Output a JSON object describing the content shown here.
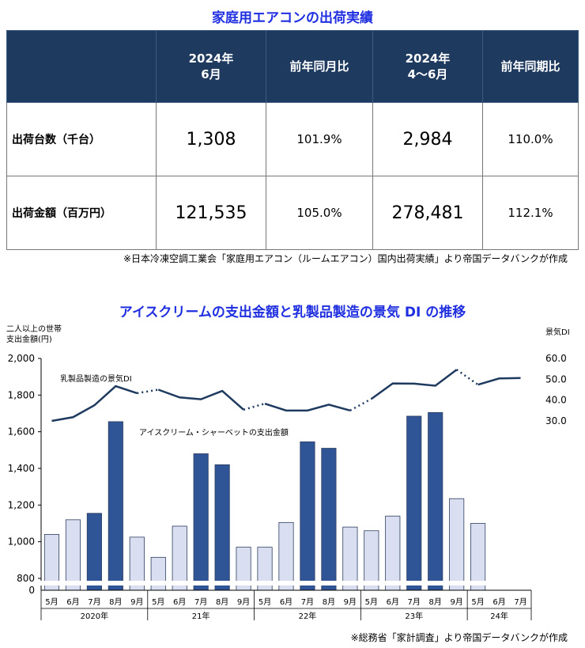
{
  "table": {
    "title": "家庭用エアコンの出荷実績",
    "headers": [
      "",
      "2024年\n6月",
      "前年同月比",
      "2024年\n4～6月",
      "前年同期比"
    ],
    "rows": [
      {
        "label": "出荷台数（千台）",
        "values": [
          "1,308",
          "101.9%",
          "2,984",
          "110.0%"
        ]
      },
      {
        "label": "出荷金額（百万円）",
        "values": [
          "121,535",
          "105.0%",
          "278,481",
          "112.1%"
        ]
      }
    ],
    "note": "※日本冷凍空調工業会「家庭用エアコン（ルームエアコン）国内出荷実績」より帝国データバンクが作成"
  },
  "chart_data": {
    "type": "bar",
    "title": "アイスクリームの支出金額と乳製品製造の景気 DI の推移",
    "ylabel_left": "二人以上の世帯\n支出金額(円)",
    "ylabel_right": "景気DI",
    "left_ticks": [
      "2,000",
      "1,800",
      "1,600",
      "1,400",
      "1,200",
      "1,000",
      "800",
      "0"
    ],
    "right_ticks": [
      "60.0",
      "50.0",
      "40.0",
      "30.0"
    ],
    "left_axis_break": [
      0,
      800
    ],
    "right_range": [
      30,
      60
    ],
    "months": [
      "5月",
      "6月",
      "7月",
      "8月",
      "9月",
      "5月",
      "6月",
      "7月",
      "8月",
      "9月",
      "5月",
      "6月",
      "7月",
      "8月",
      "9月",
      "5月",
      "6月",
      "7月",
      "8月",
      "9月",
      "5月",
      "6月",
      "7月"
    ],
    "years": [
      {
        "label": "2020年",
        "count": 5
      },
      {
        "label": "21年",
        "count": 5
      },
      {
        "label": "22年",
        "count": 5
      },
      {
        "label": "23年",
        "count": 5
      },
      {
        "label": "24年",
        "count": 3
      }
    ],
    "series": [
      {
        "name": "アイスクリーム・シャーベットの支出金額",
        "kind": "bar",
        "values": [
          1040,
          1120,
          1155,
          1655,
          1025,
          915,
          1085,
          1480,
          1420,
          970,
          970,
          1105,
          1545,
          1510,
          1080,
          1060,
          1140,
          1685,
          1705,
          1235,
          1100,
          null,
          null
        ],
        "highlight": [
          false,
          false,
          true,
          true,
          false,
          false,
          false,
          true,
          true,
          false,
          false,
          false,
          true,
          true,
          false,
          false,
          false,
          true,
          true,
          false,
          false,
          false,
          false
        ],
        "color_dark": "#2f5597",
        "color_light": "#d9dff0"
      },
      {
        "name": "乳製品製造の景気DI",
        "kind": "line",
        "axis": "right",
        "values": [
          30.0,
          31.8,
          37.5,
          46.7,
          43.3,
          45.0,
          41.3,
          40.4,
          44.4,
          35.4,
          38.3,
          35.0,
          35.0,
          37.8,
          35.0,
          40.6,
          48.0,
          47.9,
          46.9,
          54.6,
          47.4,
          50.4,
          50.6
        ],
        "color": "#1f3a5f"
      }
    ]
  },
  "chart_note": "※総務省「家計調査」より帝国データバンクが作成"
}
